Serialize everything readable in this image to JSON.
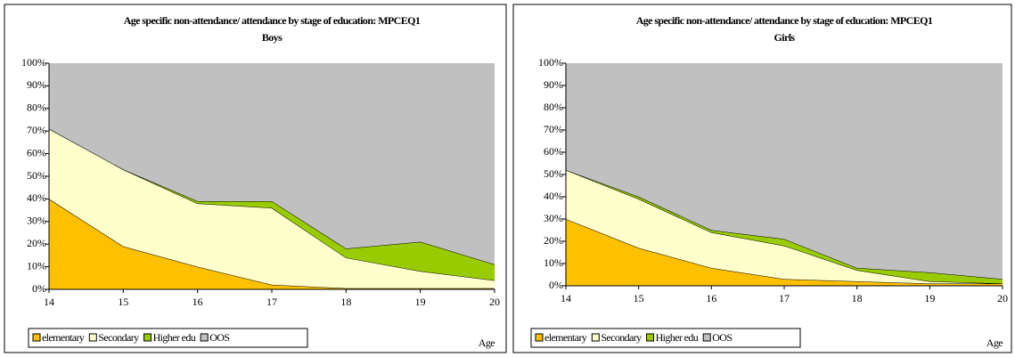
{
  "chart_data": [
    {
      "type": "area",
      "stacked": true,
      "title": "Age specific non-attendance/ attendance by stage of education: MPCEQ1",
      "subtitle": "Boys",
      "x": [
        14,
        15,
        16,
        17,
        18,
        19,
        20
      ],
      "xlim": [
        14,
        20
      ],
      "xticks": [
        14,
        15,
        16,
        17,
        18,
        19,
        20
      ],
      "x_label": "Age",
      "ylim": [
        0,
        100
      ],
      "yticks": [
        {
          "value": 0,
          "label": "0%"
        },
        {
          "value": 10,
          "label": "10%"
        },
        {
          "value": 20,
          "label": "20%"
        },
        {
          "value": 30,
          "label": "30%"
        },
        {
          "value": 40,
          "label": "40%"
        },
        {
          "value": 50,
          "label": "50%"
        },
        {
          "value": 60,
          "label": "60%"
        },
        {
          "value": 70,
          "label": "70%"
        },
        {
          "value": 80,
          "label": "80%"
        },
        {
          "value": 90,
          "label": "90%"
        },
        {
          "value": 100,
          "label": "100%"
        }
      ],
      "series": [
        {
          "name": "elementary",
          "color": "#ffc000",
          "values": [
            40,
            19,
            10,
            2,
            0.5,
            0.5,
            0.5
          ]
        },
        {
          "name": "Secondary",
          "color": "#ffffcc",
          "values": [
            31,
            34,
            28,
            34,
            13.5,
            7.5,
            3.5
          ]
        },
        {
          "name": "Higher edu",
          "color": "#99cc00",
          "values": [
            0,
            0,
            1,
            3,
            4,
            13,
            7
          ]
        },
        {
          "name": "OOS",
          "color": "#c0c0c0",
          "values": [
            29,
            47,
            61,
            61,
            82,
            79,
            89
          ]
        }
      ]
    },
    {
      "type": "area",
      "stacked": true,
      "title": "Age specific non-attendance/ attendance by stage of education: MPCEQ1",
      "subtitle": "Girls",
      "x": [
        14,
        15,
        16,
        17,
        18,
        19,
        20
      ],
      "xlim": [
        14,
        20
      ],
      "xticks": [
        14,
        15,
        16,
        17,
        18,
        19,
        20
      ],
      "x_label": "Age",
      "ylim": [
        0,
        100
      ],
      "yticks": [
        {
          "value": 0,
          "label": "0%"
        },
        {
          "value": 10,
          "label": "10%"
        },
        {
          "value": 20,
          "label": "20%"
        },
        {
          "value": 30,
          "label": "30%"
        },
        {
          "value": 40,
          "label": "40%"
        },
        {
          "value": 50,
          "label": "50%"
        },
        {
          "value": 60,
          "label": "60%"
        },
        {
          "value": 70,
          "label": "70%"
        },
        {
          "value": 80,
          "label": "80%"
        },
        {
          "value": 90,
          "label": "90%"
        },
        {
          "value": 100,
          "label": "100%"
        }
      ],
      "series": [
        {
          "name": "elementary",
          "color": "#ffc000",
          "values": [
            30,
            17,
            8,
            3,
            2,
            1,
            1
          ]
        },
        {
          "name": "Secondary",
          "color": "#ffffcc",
          "values": [
            22,
            22,
            16,
            15,
            5,
            1,
            0
          ]
        },
        {
          "name": "Higher edu",
          "color": "#99cc00",
          "values": [
            0,
            1,
            1,
            3,
            1,
            4,
            2
          ]
        },
        {
          "name": "OOS",
          "color": "#c0c0c0",
          "values": [
            48,
            60,
            75,
            79,
            92,
            94,
            97
          ]
        }
      ]
    }
  ]
}
